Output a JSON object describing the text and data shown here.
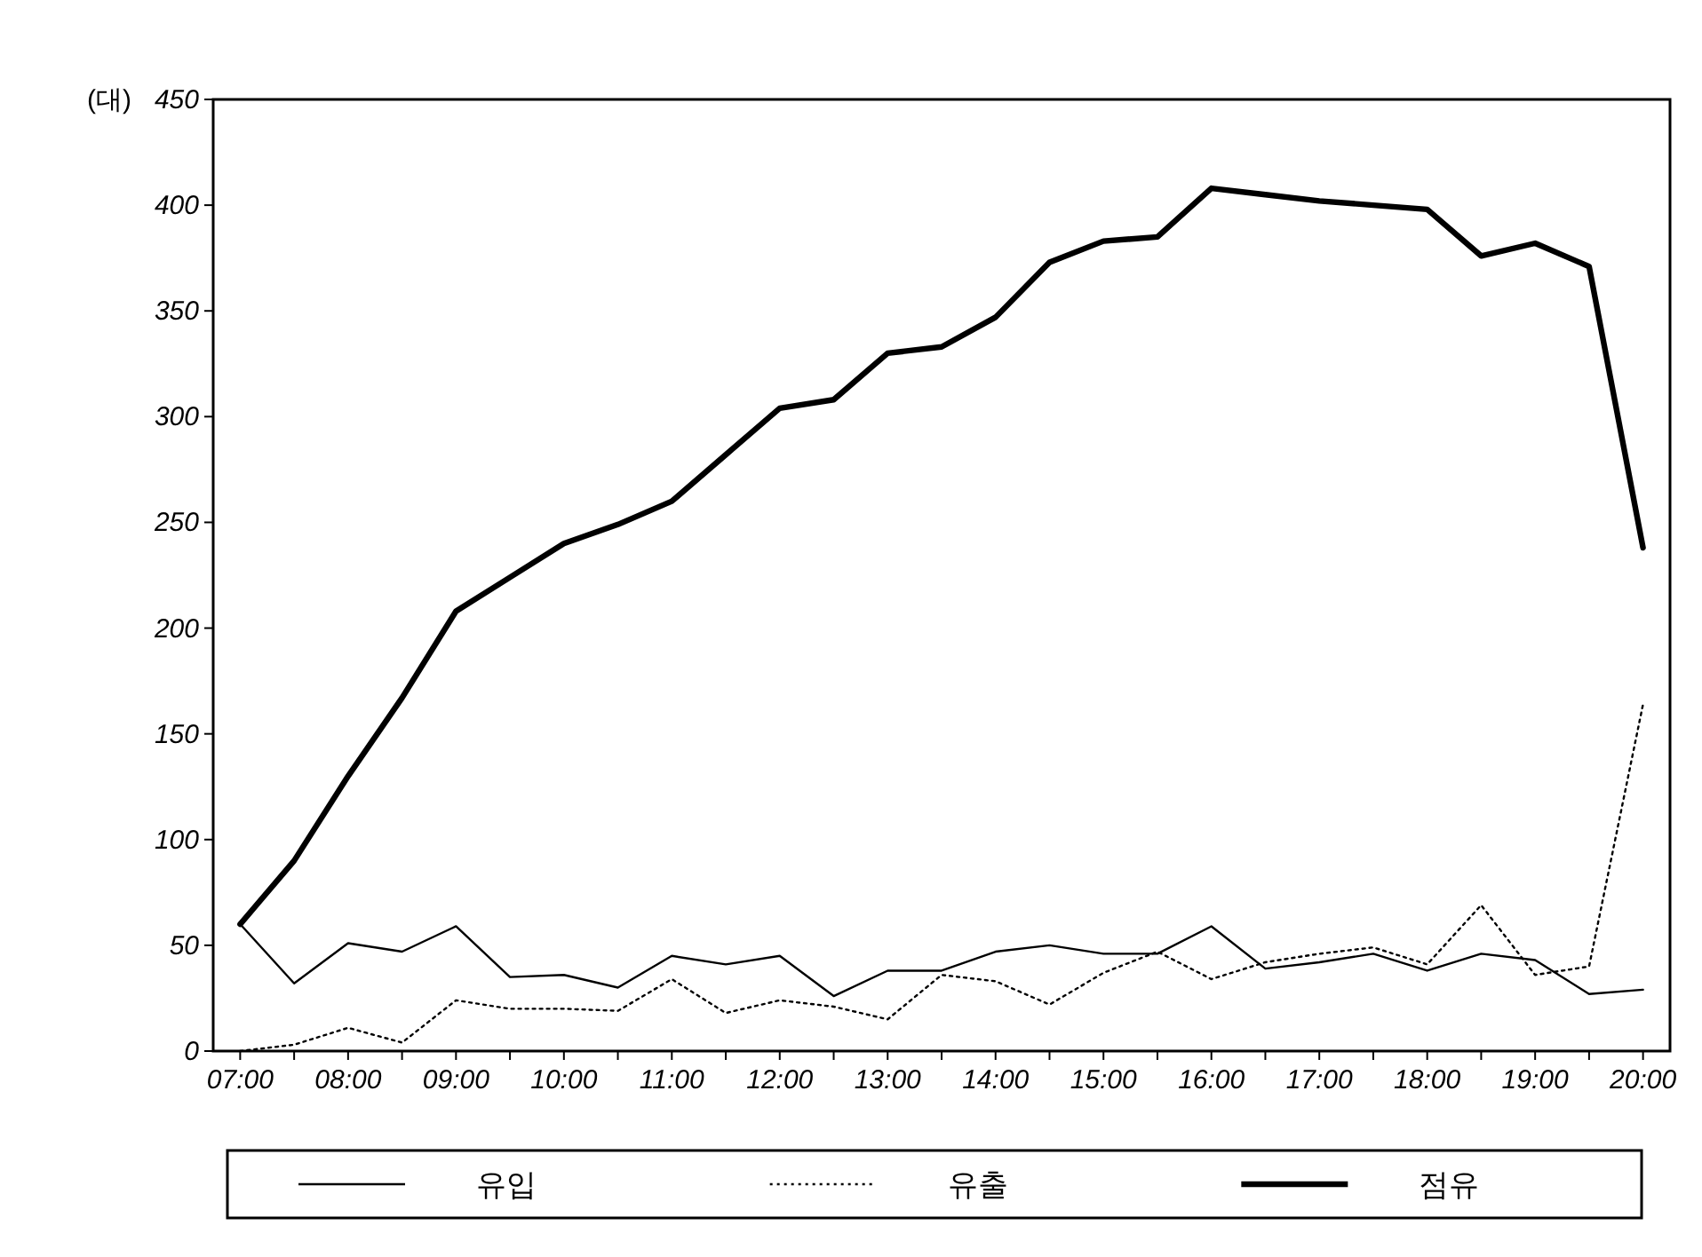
{
  "chart_data": {
    "type": "line",
    "ylabel": "(대)",
    "x": [
      7,
      7.5,
      8,
      8.5,
      9,
      9.5,
      10,
      10.5,
      11,
      11.5,
      12,
      12.5,
      13,
      13.5,
      14,
      14.5,
      15,
      15.5,
      16,
      16.5,
      17,
      17.5,
      18,
      18.5,
      19,
      19.5,
      20
    ],
    "xlim": [
      6.75,
      20.25
    ],
    "xticks": [
      {
        "value": 7,
        "label": "07:00"
      },
      {
        "value": 7.5,
        "label": null
      },
      {
        "value": 8,
        "label": "08:00"
      },
      {
        "value": 8.5,
        "label": null
      },
      {
        "value": 9,
        "label": "09:00"
      },
      {
        "value": 9.5,
        "label": null
      },
      {
        "value": 10,
        "label": "10:00"
      },
      {
        "value": 10.5,
        "label": null
      },
      {
        "value": 11,
        "label": "11:00"
      },
      {
        "value": 11.5,
        "label": null
      },
      {
        "value": 12,
        "label": "12:00"
      },
      {
        "value": 12.5,
        "label": null
      },
      {
        "value": 13,
        "label": "13:00"
      },
      {
        "value": 13.5,
        "label": null
      },
      {
        "value": 14,
        "label": "14:00"
      },
      {
        "value": 14.5,
        "label": null
      },
      {
        "value": 15,
        "label": "15:00"
      },
      {
        "value": 15.5,
        "label": null
      },
      {
        "value": 16,
        "label": "16:00"
      },
      {
        "value": 16.5,
        "label": null
      },
      {
        "value": 17,
        "label": "17:00"
      },
      {
        "value": 17.5,
        "label": null
      },
      {
        "value": 18,
        "label": "18:00"
      },
      {
        "value": 18.5,
        "label": null
      },
      {
        "value": 19,
        "label": "19:00"
      },
      {
        "value": 19.5,
        "label": null
      },
      {
        "value": 20,
        "label": "20:00"
      }
    ],
    "ylim": [
      0,
      450
    ],
    "yticks": [
      0,
      50,
      100,
      150,
      200,
      250,
      300,
      350,
      400,
      450
    ],
    "grid": false,
    "legend": "bottom",
    "marker": "none",
    "series": [
      {
        "name": "유입",
        "color": "#000000",
        "line_style": "solid",
        "values": [
          60,
          32,
          51,
          47,
          59,
          35,
          36,
          30,
          45,
          41,
          45,
          26,
          38,
          38,
          47,
          50,
          46,
          46,
          59,
          39,
          42,
          46,
          38,
          46,
          43,
          27,
          29
        ]
      },
      {
        "name": "유출",
        "color": "#000000",
        "line_style": "dotted",
        "values": [
          0,
          3,
          11,
          4,
          24,
          20,
          20,
          19,
          34,
          18,
          24,
          21,
          15,
          36,
          33,
          22,
          37,
          47,
          34,
          42,
          46,
          49,
          41,
          69,
          36,
          40,
          164
        ]
      },
      {
        "name": "점유",
        "color": "#000000",
        "line_style": "solid",
        "values": [
          60,
          90,
          130,
          167,
          208,
          224,
          240,
          249,
          260,
          282,
          304,
          308,
          330,
          333,
          347,
          373,
          383,
          385,
          408,
          405,
          402,
          400,
          398,
          376,
          382,
          371,
          238
        ]
      }
    ]
  }
}
